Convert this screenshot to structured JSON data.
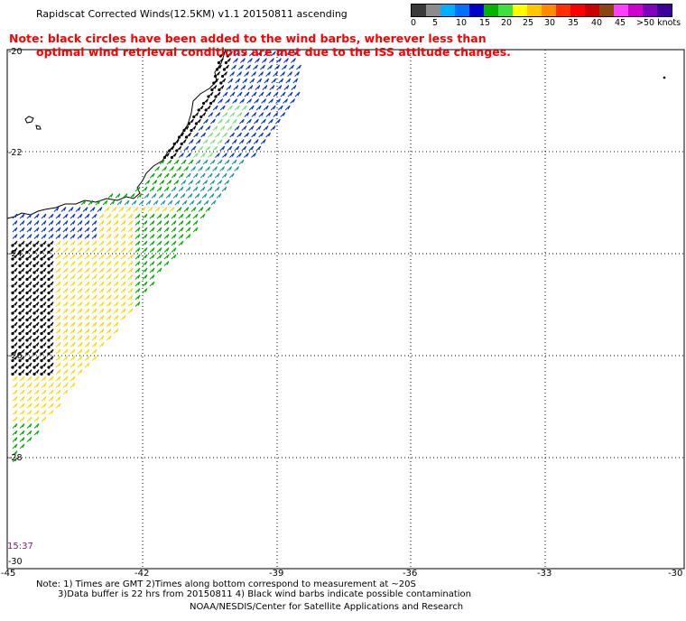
{
  "header": {
    "title": "Rapidscat Corrected Winds(12.5KM) v1.1 20150811 ascending"
  },
  "notice": {
    "line1": "Note: black circles have been added to the wind barbs, wherever less than",
    "line2": "optimal wind retrieval conditions are met due to the ISS attitude changes."
  },
  "colorscale": {
    "unit": "knots",
    "labels": [
      "0",
      "5",
      "10",
      "15",
      "20",
      "25",
      "30",
      "35",
      "40",
      "45",
      ">50 knots"
    ],
    "colors": [
      "#3a3a3a",
      "#8c8c8c",
      "#00b0ff",
      "#0070ff",
      "#0000c8",
      "#00b400",
      "#40e040",
      "#ffff00",
      "#ffc800",
      "#ff8c00",
      "#ff3000",
      "#ff0000",
      "#c80000",
      "#8b4513",
      "#ff40ff",
      "#d000d0",
      "#8000c0",
      "#3c0096"
    ]
  },
  "map": {
    "lat_labels": [
      "-20",
      "-22",
      "-24",
      "-26",
      "-28",
      "-30"
    ],
    "lon_labels": [
      "-45",
      "-42",
      "-39",
      "-36",
      "-33",
      "-30"
    ],
    "time_label": "15:37",
    "wind_colors": {
      "calm": "#000000",
      "blue": "#0033cc",
      "teal": "#1f8fa0",
      "green": "#00a800",
      "lightgreen": "#7be07b",
      "yellow": "#ffd800",
      "flagged": "#000000"
    }
  },
  "footer": {
    "line1": "Note: 1) Times are GMT 2)Times along bottom correspond to measurement at ~20S",
    "line2": "3)Data buffer is 22 hrs from 20150811 4) Black wind barbs indicate possible contamination",
    "line3": "NOAA/NESDIS/Center for Satellite Applications and Research"
  }
}
